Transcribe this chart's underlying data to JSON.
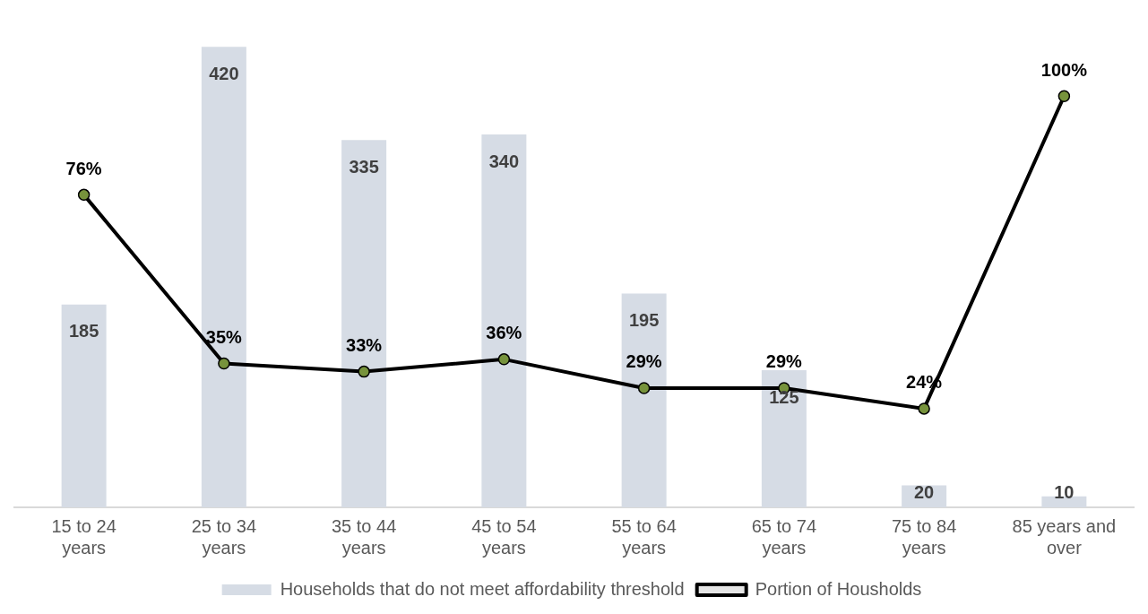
{
  "chart_data": {
    "type": "bar",
    "categories": [
      "15 to 24 years",
      "25 to 34 years",
      "35 to 44 years",
      "45 to 54 years",
      "55 to 64 years",
      "65 to 74 years",
      "75 to 84 years",
      "85 years and over"
    ],
    "series": [
      {
        "name": "Households that do not meet affordability threshold",
        "type": "bar",
        "color": "#d6dce5",
        "values": [
          185,
          420,
          335,
          340,
          195,
          125,
          20,
          10
        ],
        "value_labels": [
          "185",
          "420",
          "335",
          "340",
          "195",
          "125",
          "20",
          "10"
        ]
      },
      {
        "name": "Portion of Housholds",
        "type": "line",
        "axis": "y2",
        "color": "#000000",
        "values": [
          76,
          35,
          33,
          36,
          29,
          29,
          24,
          100
        ],
        "value_labels": [
          "76%",
          "35%",
          "33%",
          "36%",
          "29%",
          "29%",
          "24%",
          "100%"
        ]
      }
    ],
    "tick_labels": "x",
    "grid": false,
    "legend": "bottom",
    "marker": "circle",
    "line_style": "solid"
  }
}
